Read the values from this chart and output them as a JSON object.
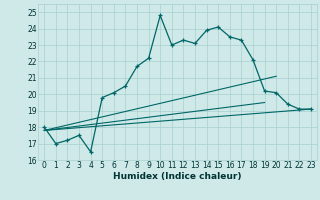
{
  "title": "",
  "xlabel": "Humidex (Indice chaleur)",
  "bg_color": "#cfe9e9",
  "grid_color": "#a8cfcf",
  "line_color": "#006666",
  "xlim": [
    -0.5,
    23.5
  ],
  "ylim": [
    16.0,
    25.5
  ],
  "yticks": [
    16,
    17,
    18,
    19,
    20,
    21,
    22,
    23,
    24,
    25
  ],
  "xticks": [
    0,
    1,
    2,
    3,
    4,
    5,
    6,
    7,
    8,
    9,
    10,
    11,
    12,
    13,
    14,
    15,
    16,
    17,
    18,
    19,
    20,
    21,
    22,
    23
  ],
  "main_line_x": [
    0,
    1,
    2,
    3,
    4,
    5,
    6,
    7,
    8,
    9,
    10,
    11,
    12,
    13,
    14,
    15,
    16,
    17,
    18,
    19,
    20,
    21,
    22,
    23
  ],
  "main_line_y": [
    18.0,
    17.0,
    17.2,
    17.5,
    16.5,
    19.8,
    20.1,
    20.5,
    21.7,
    22.2,
    24.8,
    23.0,
    23.3,
    23.1,
    23.9,
    24.1,
    23.5,
    23.3,
    22.1,
    20.2,
    20.1,
    19.4,
    19.1,
    19.1
  ],
  "line2_x": [
    0,
    23
  ],
  "line2_y": [
    17.8,
    19.1
  ],
  "line3_x": [
    0,
    20
  ],
  "line3_y": [
    17.8,
    21.1
  ],
  "line4_x": [
    0,
    19
  ],
  "line4_y": [
    17.8,
    19.5
  ]
}
